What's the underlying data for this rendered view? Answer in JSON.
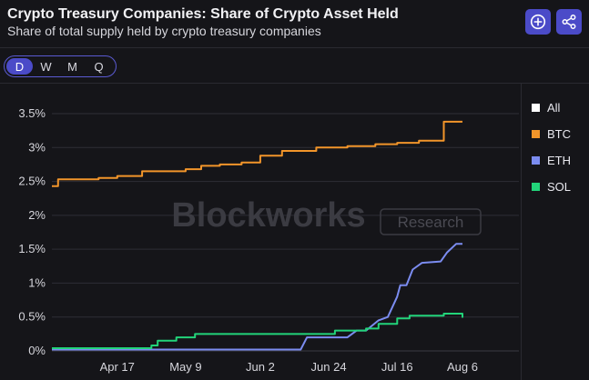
{
  "header": {
    "title": "Crypto Treasury Companies: Share of Crypto Asset Held",
    "subtitle": "Share of total supply held by crypto treasury companies"
  },
  "icons": {
    "add": "plus-circle-icon",
    "share": "share-icon"
  },
  "tabs": [
    {
      "label": "D",
      "active": true
    },
    {
      "label": "W",
      "active": false
    },
    {
      "label": "M",
      "active": false
    },
    {
      "label": "Q",
      "active": false
    }
  ],
  "watermark": {
    "brand": "Blockworks",
    "tag": "Research"
  },
  "legend": [
    {
      "label": "All",
      "color": "#ffffff"
    },
    {
      "label": "BTC",
      "color": "#f2952a"
    },
    {
      "label": "ETH",
      "color": "#7b8cf0"
    },
    {
      "label": "SOL",
      "color": "#22d47a"
    }
  ],
  "colors": {
    "accent": "#4b4bc8",
    "background": "#151519",
    "grid": "#2e2e36"
  },
  "chart_data": {
    "type": "line",
    "title": "Crypto Treasury Companies: Share of Crypto Asset Held",
    "xlabel": "",
    "ylabel": "",
    "x_range": [
      "2025-03-27",
      "2025-08-06"
    ],
    "ylim": [
      0,
      3.5
    ],
    "y_ticks": [
      0,
      0.5,
      1,
      1.5,
      2,
      2.5,
      3,
      3.5
    ],
    "y_tick_labels": [
      "0%",
      "0.5%",
      "1%",
      "1.5%",
      "2%",
      "2.5%",
      "3%",
      "3.5%"
    ],
    "x_ticks": [
      "2025-04-17",
      "2025-05-09",
      "2025-06-02",
      "2025-06-24",
      "2025-07-16",
      "2025-08-06"
    ],
    "x_tick_labels": [
      "Apr 17",
      "May 9",
      "Jun 2",
      "Jun 24",
      "Jul 16",
      "Aug 6"
    ],
    "grid": true,
    "legend_position": "right",
    "series": [
      {
        "name": "BTC",
        "color": "#f2952a",
        "step": true,
        "points": [
          [
            "2025-03-27",
            2.43
          ],
          [
            "2025-03-29",
            2.53
          ],
          [
            "2025-04-11",
            2.55
          ],
          [
            "2025-04-17",
            2.58
          ],
          [
            "2025-04-25",
            2.65
          ],
          [
            "2025-05-09",
            2.68
          ],
          [
            "2025-05-14",
            2.73
          ],
          [
            "2025-05-20",
            2.75
          ],
          [
            "2025-05-27",
            2.78
          ],
          [
            "2025-06-02",
            2.88
          ],
          [
            "2025-06-09",
            2.95
          ],
          [
            "2025-06-20",
            3.0
          ],
          [
            "2025-06-30",
            3.02
          ],
          [
            "2025-07-09",
            3.05
          ],
          [
            "2025-07-16",
            3.07
          ],
          [
            "2025-07-23",
            3.1
          ],
          [
            "2025-07-31",
            3.38
          ],
          [
            "2025-08-06",
            3.38
          ]
        ]
      },
      {
        "name": "ETH",
        "color": "#7b8cf0",
        "step": false,
        "points": [
          [
            "2025-03-27",
            0.02
          ],
          [
            "2025-06-15",
            0.02
          ],
          [
            "2025-06-17",
            0.2
          ],
          [
            "2025-06-30",
            0.2
          ],
          [
            "2025-07-03",
            0.3
          ],
          [
            "2025-07-06",
            0.3
          ],
          [
            "2025-07-10",
            0.45
          ],
          [
            "2025-07-13",
            0.5
          ],
          [
            "2025-07-16",
            0.8
          ],
          [
            "2025-07-17",
            0.97
          ],
          [
            "2025-07-19",
            0.97
          ],
          [
            "2025-07-21",
            1.2
          ],
          [
            "2025-07-24",
            1.3
          ],
          [
            "2025-07-30",
            1.32
          ],
          [
            "2025-08-01",
            1.45
          ],
          [
            "2025-08-04",
            1.58
          ],
          [
            "2025-08-06",
            1.58
          ]
        ]
      },
      {
        "name": "SOL",
        "color": "#22d47a",
        "step": true,
        "points": [
          [
            "2025-03-27",
            0.04
          ],
          [
            "2025-04-28",
            0.08
          ],
          [
            "2025-04-30",
            0.15
          ],
          [
            "2025-05-06",
            0.2
          ],
          [
            "2025-05-12",
            0.25
          ],
          [
            "2025-06-26",
            0.3
          ],
          [
            "2025-07-06",
            0.33
          ],
          [
            "2025-07-10",
            0.4
          ],
          [
            "2025-07-16",
            0.48
          ],
          [
            "2025-07-20",
            0.52
          ],
          [
            "2025-07-31",
            0.55
          ],
          [
            "2025-08-05",
            0.55
          ],
          [
            "2025-08-06",
            0.49
          ]
        ]
      }
    ]
  }
}
